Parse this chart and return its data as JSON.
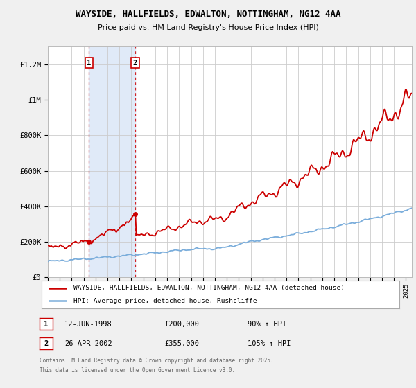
{
  "title": "WAYSIDE, HALLFIELDS, EDWALTON, NOTTINGHAM, NG12 4AA",
  "subtitle": "Price paid vs. HM Land Registry's House Price Index (HPI)",
  "legend_entry1": "WAYSIDE, HALLFIELDS, EDWALTON, NOTTINGHAM, NG12 4AA (detached house)",
  "legend_entry2": "HPI: Average price, detached house, Rushcliffe",
  "transaction1_label": "1",
  "transaction1_date": "12-JUN-1998",
  "transaction1_price": "£200,000",
  "transaction1_hpi": "90% ↑ HPI",
  "transaction2_label": "2",
  "transaction2_date": "26-APR-2002",
  "transaction2_price": "£355,000",
  "transaction2_hpi": "105% ↑ HPI",
  "footnote1": "Contains HM Land Registry data © Crown copyright and database right 2025.",
  "footnote2": "This data is licensed under the Open Government Licence v3.0.",
  "background_color": "#f0f0f0",
  "plot_background": "#ffffff",
  "red_line_color": "#cc0000",
  "blue_line_color": "#7aaddb",
  "shade_color": "#e0eaf8",
  "vline_color": "#cc0000",
  "ylim_max": 1300000,
  "t1_year": 1998.45,
  "t2_year": 2002.32,
  "t1_price": 200000,
  "t2_price": 355000
}
